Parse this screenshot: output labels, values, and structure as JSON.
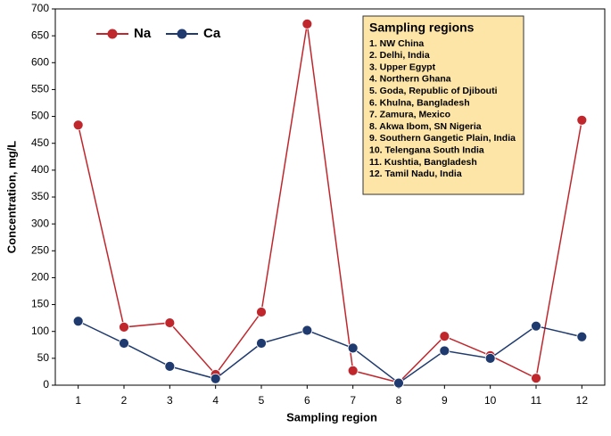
{
  "chart_data": {
    "type": "line",
    "xlabel": "Sampling region",
    "ylabel": "Concentration, mg/L",
    "categories": [
      "1",
      "2",
      "3",
      "4",
      "5",
      "6",
      "7",
      "8",
      "9",
      "10",
      "11",
      "12"
    ],
    "series": [
      {
        "name": "Na",
        "color": "#c0272d",
        "values": [
          484,
          108,
          116,
          20,
          136,
          672,
          27,
          5,
          91,
          55,
          13,
          493
        ]
      },
      {
        "name": "Ca",
        "color": "#1f3a6e",
        "values": [
          119,
          78,
          35,
          12,
          78,
          102,
          69,
          4,
          64,
          50,
          110,
          90
        ]
      }
    ],
    "ylim": [
      0,
      700
    ],
    "yticks": [
      0,
      50,
      100,
      150,
      200,
      250,
      300,
      350,
      400,
      450,
      500,
      550,
      600,
      650,
      700
    ],
    "grid": false,
    "regions_title": "Sampling regions",
    "regions": [
      "1. NW China",
      "2. Delhi, India",
      "3. Upper Egypt",
      "4. Northern Ghana",
      "5.  Goda, Republic of Djibouti",
      "6. Khulna, Bangladesh",
      "7. Zamura, Mexico",
      "8. Akwa Ibom, SN Nigeria",
      "9. Southern Gangetic Plain, India",
      "10. Telengana South India",
      "11. Kushtia, Bangladesh",
      "12. Tamil Nadu, India"
    ]
  }
}
